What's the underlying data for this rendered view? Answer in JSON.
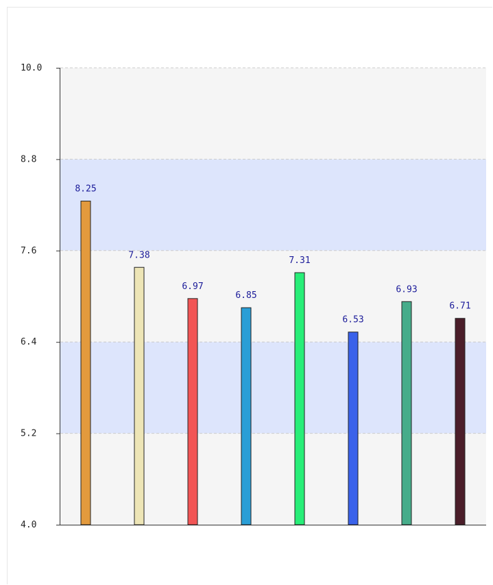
{
  "chart_data": {
    "type": "bar",
    "title": "",
    "xlabel": "",
    "ylabel": "",
    "ylim": [
      4.0,
      10.0
    ],
    "y_ticks": [
      "4.0",
      "5.2",
      "6.4",
      "7.6",
      "8.8",
      "10.0"
    ],
    "grid": true,
    "legend": "none",
    "background_bands": [
      "#f5f5f5",
      "#dde5fc"
    ],
    "values": [
      8.25,
      7.38,
      6.97,
      6.85,
      7.31,
      6.53,
      6.93,
      6.71
    ],
    "data_labels": [
      "8.25",
      "7.38",
      "6.97",
      "6.85",
      "7.31",
      "6.53",
      "6.93",
      "6.71"
    ],
    "colors": [
      "#e39a3d",
      "#ede5b6",
      "#f25555",
      "#2a9ed6",
      "#28ee78",
      "#3a62ea",
      "#46ac8a",
      "#4b1e2a"
    ]
  }
}
